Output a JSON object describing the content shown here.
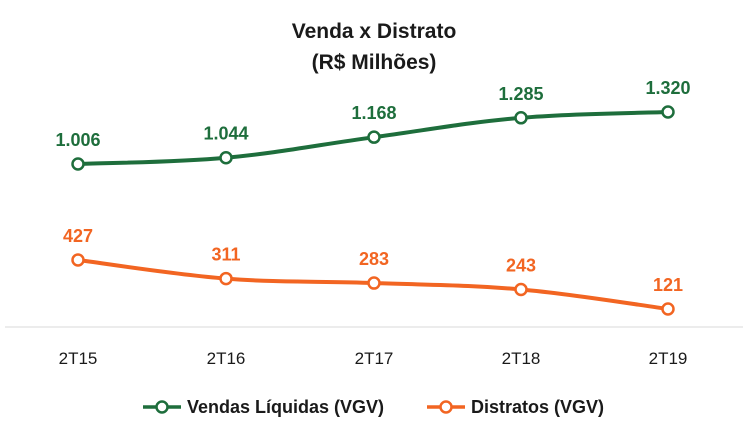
{
  "chart_data": {
    "type": "line",
    "title": "Venda x Distrato",
    "subtitle": "(R$ Milhões)",
    "categories": [
      "2T15",
      "2T16",
      "2T17",
      "2T18",
      "2T19"
    ],
    "series": [
      {
        "name": "Vendas Líquidas (VGV)",
        "values": [
          1006,
          1044,
          1168,
          1285,
          1320
        ],
        "labels": [
          "1.006",
          "1.044",
          "1.168",
          "1.285",
          "1.320"
        ],
        "color": "#1e6e3c"
      },
      {
        "name": "Distratos (VGV)",
        "values": [
          427,
          311,
          283,
          243,
          121
        ],
        "labels": [
          "427",
          "311",
          "283",
          "243",
          "121"
        ],
        "color": "#f26522"
      }
    ],
    "grid": false,
    "legend": "bottom"
  }
}
